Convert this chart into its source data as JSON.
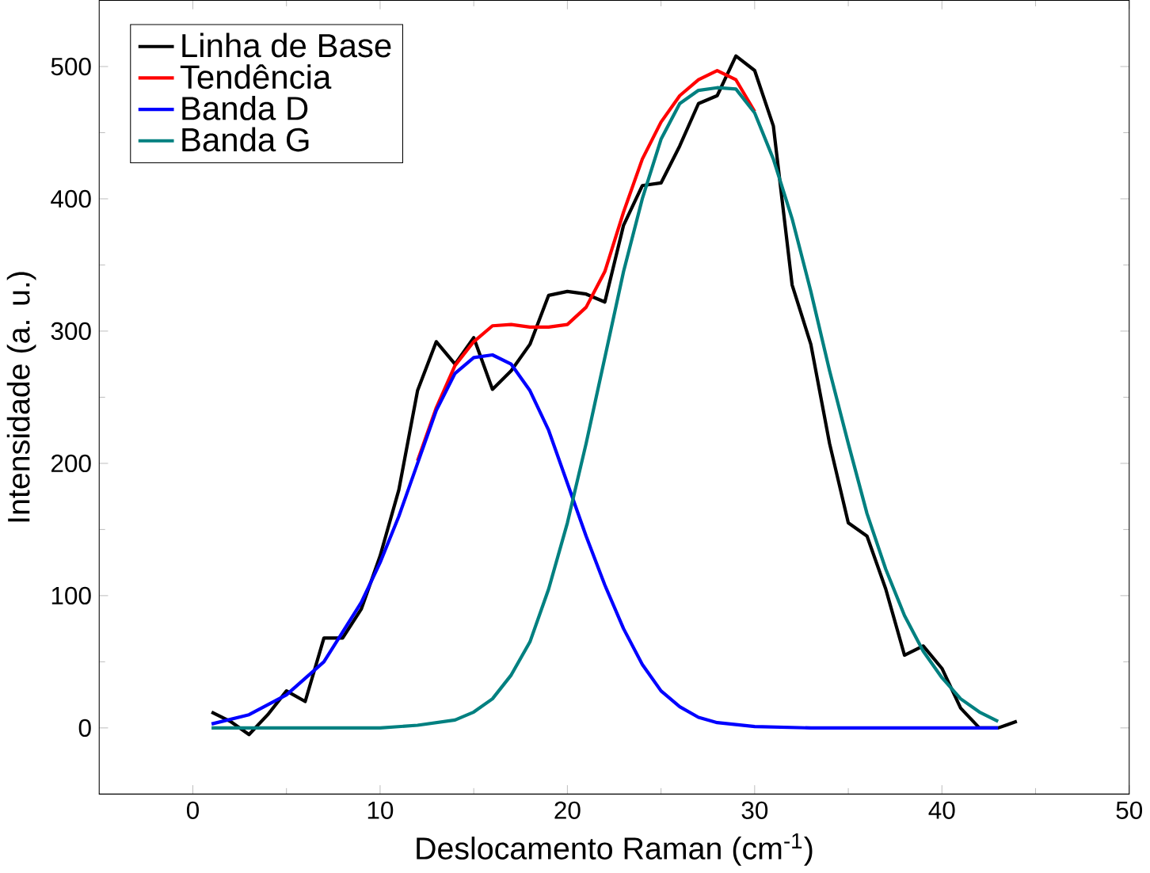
{
  "chart_data": {
    "type": "line",
    "xlabel": "Deslocamento Raman (cm$^{-1}$)",
    "ylabel": "Intensidade (a. u.)",
    "xlim": [
      -5,
      50
    ],
    "xticks": [
      0,
      10,
      20,
      30,
      40,
      50
    ],
    "ylim": [
      -50,
      550
    ],
    "yticks": [
      0,
      100,
      200,
      300,
      400,
      500
    ],
    "legend": "top left",
    "grid": false,
    "series": [
      {
        "name": "Linha de Base",
        "color": "#000000",
        "x": [
          1,
          2,
          3,
          4,
          5,
          6,
          7,
          8,
          9,
          10,
          11,
          12,
          13,
          14,
          15,
          16,
          17,
          18,
          19,
          20,
          21,
          22,
          23,
          24,
          25,
          26,
          27,
          28,
          29,
          30,
          31,
          32,
          33,
          34,
          35,
          36,
          37,
          38,
          39,
          40,
          41,
          42,
          43,
          44
        ],
        "values": [
          12,
          5,
          -5,
          10,
          28,
          20,
          68,
          68,
          90,
          130,
          180,
          255,
          292,
          275,
          295,
          256,
          270,
          290,
          327,
          330,
          328,
          322,
          380,
          410,
          412,
          440,
          472,
          478,
          508,
          497,
          455,
          335,
          290,
          215,
          155,
          145,
          105,
          55,
          62,
          45,
          15,
          0,
          0,
          5
        ]
      },
      {
        "name": "Tendência",
        "color": "#ff0000",
        "x": [
          12,
          13,
          14,
          15,
          16,
          17,
          18,
          19,
          20,
          21,
          22,
          23,
          24,
          25,
          26,
          27,
          28,
          29,
          30
        ],
        "values": [
          202,
          242,
          274,
          292,
          304,
          305,
          303,
          303,
          305,
          318,
          345,
          390,
          430,
          458,
          478,
          490,
          497,
          490,
          466
        ]
      },
      {
        "name": "Banda D",
        "color": "#0000ff",
        "x": [
          1,
          3,
          5,
          7,
          9,
          10,
          11,
          12,
          13,
          14,
          15,
          16,
          17,
          18,
          19,
          20,
          21,
          22,
          23,
          24,
          25,
          26,
          27,
          28,
          30,
          33,
          43
        ],
        "values": [
          3,
          10,
          25,
          50,
          95,
          125,
          160,
          200,
          240,
          268,
          280,
          282,
          275,
          255,
          225,
          185,
          145,
          108,
          75,
          48,
          28,
          16,
          8,
          4,
          1,
          0,
          0
        ]
      },
      {
        "name": "Banda G",
        "color": "#008080",
        "x": [
          1,
          10,
          12,
          14,
          15,
          16,
          17,
          18,
          19,
          20,
          21,
          22,
          23,
          24,
          25,
          26,
          27,
          28,
          29,
          30,
          31,
          32,
          33,
          34,
          35,
          36,
          37,
          38,
          39,
          40,
          41,
          42,
          43
        ],
        "values": [
          0,
          0,
          2,
          6,
          12,
          22,
          40,
          65,
          105,
          155,
          215,
          280,
          345,
          400,
          445,
          472,
          482,
          484,
          483,
          465,
          430,
          385,
          330,
          270,
          215,
          162,
          120,
          85,
          58,
          38,
          22,
          12,
          5
        ]
      }
    ]
  }
}
